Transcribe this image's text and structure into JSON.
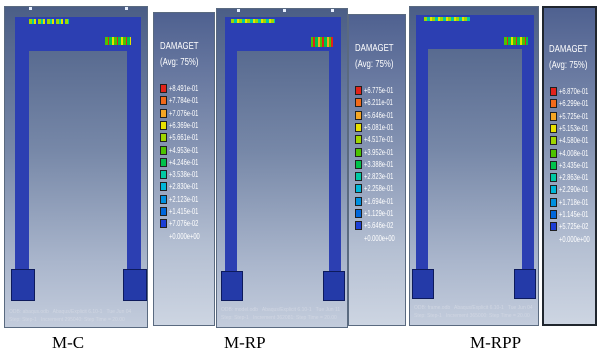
{
  "legend": {
    "title": "DAMAGET",
    "subtitle": "(Avg: 75%)",
    "colors": [
      "#e2231a",
      "#f26a1b",
      "#f5a623",
      "#e8e000",
      "#9fd600",
      "#4cc300",
      "#00c24a",
      "#00c9a4",
      "#00b6d8",
      "#0090e0",
      "#0067dc",
      "#1c3fd6"
    ]
  },
  "legends": [
    {
      "name": "M-C",
      "values": [
        "+8.491e-01",
        "+7.784e-01",
        "+7.076e-01",
        "+6.369e-01",
        "+5.661e-01",
        "+4.953e-01",
        "+4.246e-01",
        "+3.538e-01",
        "+2.830e-01",
        "+2.123e-01",
        "+1.415e-01",
        "+7.076e-02",
        "+0.000e+00"
      ]
    },
    {
      "name": "M-RP",
      "values": [
        "+6.775e-01",
        "+6.211e-01",
        "+5.646e-01",
        "+5.081e-01",
        "+4.517e-01",
        "+3.952e-01",
        "+3.388e-01",
        "+2.823e-01",
        "+2.258e-01",
        "+1.694e-01",
        "+1.129e-01",
        "+5.646e-02",
        "+0.000e+00"
      ]
    },
    {
      "name": "M-RPP",
      "values": [
        "+6.870e-01",
        "+6.299e-01",
        "+5.725e-01",
        "+5.153e-01",
        "+4.580e-01",
        "+4.008e-01",
        "+3.435e-01",
        "+2.863e-01",
        "+2.290e-01",
        "+1.718e-01",
        "+1.145e-01",
        "+5.725e-02",
        "+0.000e+00"
      ]
    }
  ],
  "captions": [
    "M-C",
    "M-RP",
    "M-RPP"
  ]
}
